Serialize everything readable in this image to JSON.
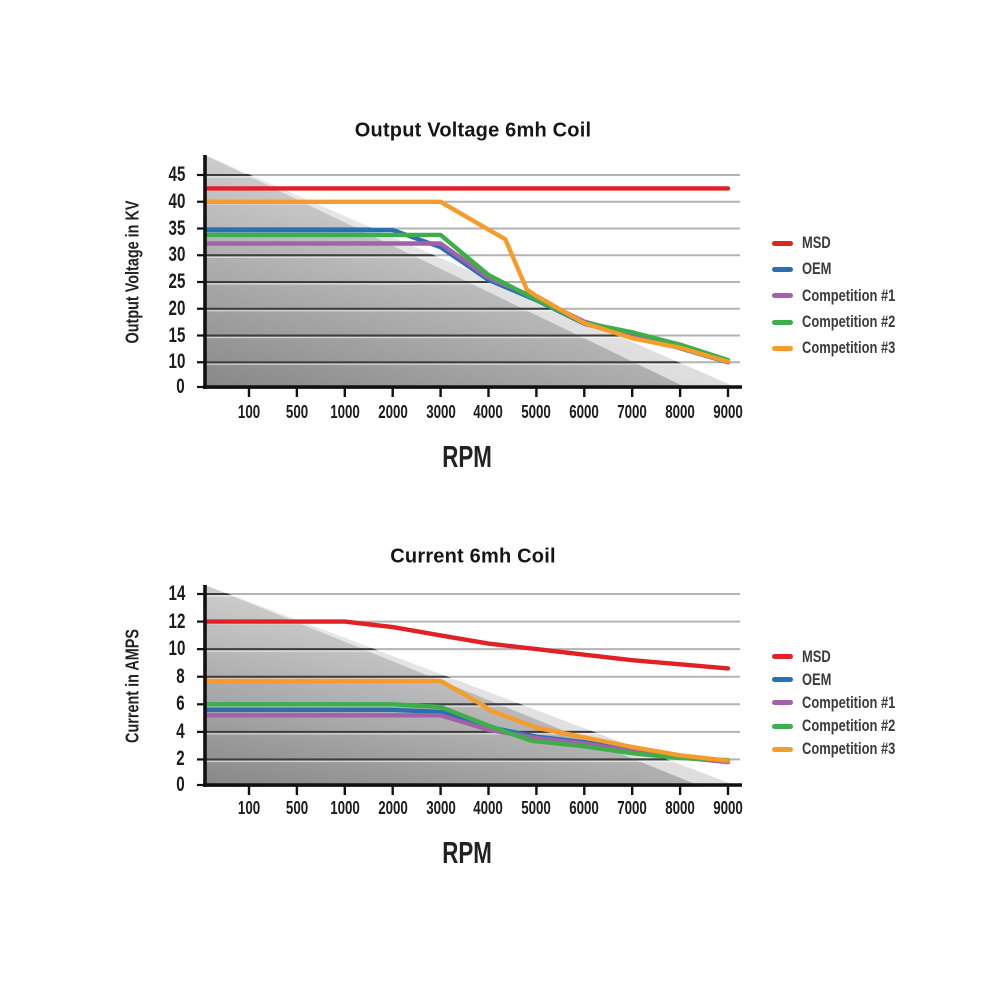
{
  "page": {
    "background": "#ffffff"
  },
  "colors": {
    "msd": "#e02125",
    "oem": "#2b6fb2",
    "competition1": "#a162aa",
    "competition2": "#3dae49",
    "competition3": "#f59c2d"
  },
  "chart_data": [
    {
      "type": "line",
      "title": "Output Voltage 6mh Coil",
      "xlabel": "RPM",
      "ylabel": "Output Voltage in KV",
      "grid": true,
      "legend_position": "right",
      "x_ticks": [
        100,
        500,
        1000,
        2000,
        3000,
        4000,
        5000,
        6000,
        7000,
        8000,
        9000
      ],
      "y_ticks": [
        45,
        40,
        35,
        30,
        25,
        20,
        15,
        10,
        0
      ],
      "ylim": [
        0,
        48
      ],
      "legend": [
        "MSD",
        "OEM",
        "Competition #1",
        "Competition #2",
        "Competition #3"
      ],
      "series": [
        {
          "name": "MSD",
          "color": "#e02125",
          "points": [
            [
              100,
              42.5
            ],
            [
              9000,
              42.5
            ]
          ]
        },
        {
          "name": "OEM",
          "color": "#2b6fb2",
          "points": [
            [
              100,
              34.7
            ],
            [
              2000,
              34.7
            ],
            [
              3000,
              31.5
            ],
            [
              4000,
              25.4
            ],
            [
              5000,
              21.6
            ],
            [
              6000,
              17.2
            ],
            [
              7000,
              15
            ],
            [
              8000,
              12.6
            ],
            [
              9000,
              10
            ]
          ]
        },
        {
          "name": "Competition #1",
          "color": "#a162aa",
          "points": [
            [
              100,
              32.2
            ],
            [
              3000,
              32.2
            ],
            [
              4000,
              25.8
            ],
            [
              5000,
              22
            ],
            [
              6000,
              17.6
            ],
            [
              7000,
              15.2
            ],
            [
              8000,
              12.8
            ],
            [
              9000,
              10.1
            ]
          ]
        },
        {
          "name": "Competition #2",
          "color": "#3dae49",
          "points": [
            [
              100,
              33.8
            ],
            [
              3000,
              33.8
            ],
            [
              3250,
              31.9
            ],
            [
              4000,
              26.3
            ],
            [
              5000,
              21.7
            ],
            [
              6000,
              17.4
            ],
            [
              7000,
              15.6
            ],
            [
              8000,
              13.3
            ],
            [
              9000,
              10.4
            ]
          ]
        },
        {
          "name": "Competition #3",
          "color": "#f59c2d",
          "points": [
            [
              100,
              40
            ],
            [
              3000,
              40
            ],
            [
              4000,
              34.8
            ],
            [
              4350,
              33
            ],
            [
              4800,
              23.6
            ],
            [
              5000,
              22.4
            ],
            [
              6000,
              17.3
            ],
            [
              7000,
              14.5
            ],
            [
              8000,
              12.7
            ],
            [
              9000,
              10.1
            ]
          ]
        }
      ]
    },
    {
      "type": "line",
      "title": "Current 6mh Coil",
      "xlabel": "RPM",
      "ylabel": "Current in AMPS",
      "grid": true,
      "legend_position": "right",
      "x_ticks": [
        100,
        500,
        1000,
        2000,
        3000,
        4000,
        5000,
        6000,
        7000,
        8000,
        9000
      ],
      "y_ticks": [
        14,
        12,
        10,
        8,
        6,
        4,
        2,
        0
      ],
      "ylim": [
        0,
        15
      ],
      "legend": [
        "MSD",
        "OEM",
        "Competition #1",
        "Competition #2",
        "Competition #3"
      ],
      "series": [
        {
          "name": "MSD",
          "color": "#e02125",
          "points": [
            [
              100,
              12
            ],
            [
              1000,
              12
            ],
            [
              2000,
              11.6
            ],
            [
              3000,
              11
            ],
            [
              4000,
              10.4
            ],
            [
              5000,
              10
            ],
            [
              6000,
              9.6
            ],
            [
              7000,
              9.2
            ],
            [
              8000,
              8.9
            ],
            [
              9000,
              8.6
            ]
          ]
        },
        {
          "name": "OEM",
          "color": "#2b6fb2",
          "points": [
            [
              100,
              5.6
            ],
            [
              2000,
              5.6
            ],
            [
              3000,
              5.45
            ],
            [
              4000,
              4.35
            ],
            [
              5000,
              3.65
            ],
            [
              6000,
              3.25
            ],
            [
              7000,
              2.7
            ],
            [
              8000,
              2.2
            ],
            [
              9000,
              1.85
            ]
          ]
        },
        {
          "name": "Competition #1",
          "color": "#a162aa",
          "points": [
            [
              100,
              5.2
            ],
            [
              3000,
              5.2
            ],
            [
              4000,
              4.15
            ],
            [
              5000,
              3.55
            ],
            [
              6000,
              3.15
            ],
            [
              7000,
              2.6
            ],
            [
              8000,
              2.15
            ],
            [
              9000,
              1.8
            ]
          ]
        },
        {
          "name": "Competition #2",
          "color": "#3dae49",
          "points": [
            [
              100,
              6
            ],
            [
              2000,
              6
            ],
            [
              3000,
              5.8
            ],
            [
              4000,
              4.45
            ],
            [
              4900,
              3.35
            ],
            [
              6000,
              2.95
            ],
            [
              7000,
              2.45
            ],
            [
              8000,
              2.1
            ],
            [
              9000,
              1.95
            ]
          ]
        },
        {
          "name": "Competition #3",
          "color": "#f59c2d",
          "points": [
            [
              100,
              7.7
            ],
            [
              3000,
              7.7
            ],
            [
              3900,
              5.9
            ],
            [
              4000,
              5.6
            ],
            [
              5000,
              4.3
            ],
            [
              6000,
              3.6
            ],
            [
              7000,
              2.9
            ],
            [
              8000,
              2.3
            ],
            [
              9000,
              1.9
            ]
          ]
        }
      ]
    }
  ]
}
